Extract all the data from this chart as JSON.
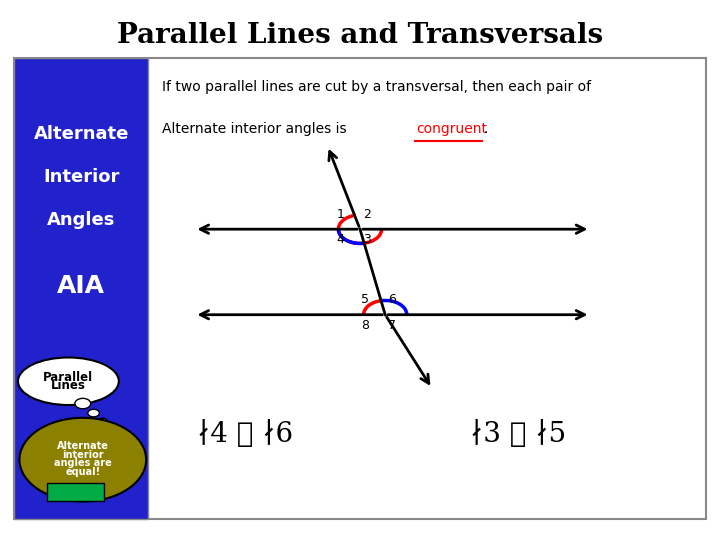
{
  "title": "Parallel Lines and Transversals",
  "title_fontsize": 20,
  "title_fontweight": "bold",
  "bg_color": "#ffffff",
  "left_panel_color": "#2222cc",
  "left_panel_text_color": "#ffffff",
  "theorem_text_line1": "If two parallel lines are cut by a transversal, then each pair of",
  "theorem_text_line2": "Alternate interior angles is ",
  "theorem_keyword": "congruent",
  "theorem_keyword_color": "#ff0000",
  "angle_label_color_blue": "#0000ff",
  "angle_label_color_red": "#ff0000",
  "formula1": "∤4 ≅ ∤6",
  "formula2": "∤3 ≅ ∤5",
  "outer_border_color": "#888888",
  "ix1": 0.5,
  "iy1": 0.62,
  "ix2": 0.535,
  "iy2": 0.44
}
